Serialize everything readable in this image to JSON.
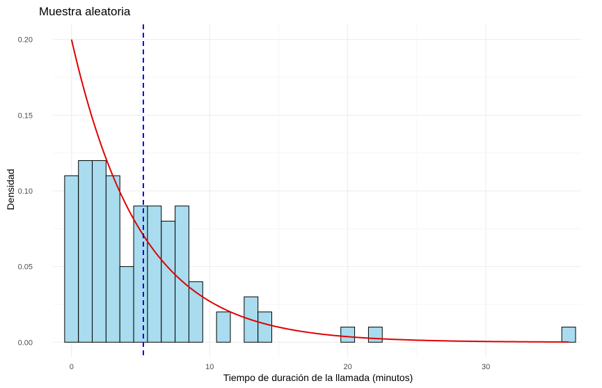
{
  "chart_data": {
    "type": "bar",
    "title": "Muestra aleatoria",
    "xlabel": "Tiempo de duración de la llamada (minutos)",
    "ylabel": "Densidad",
    "xlim": [
      -1.35,
      36.9
    ],
    "ylim": [
      -0.01,
      0.21
    ],
    "x_ticks": [
      0,
      10,
      20,
      30
    ],
    "x_tick_labels": [
      "0",
      "10",
      "20",
      "30"
    ],
    "y_ticks": [
      0,
      0.05,
      0.1,
      0.15,
      0.2
    ],
    "y_tick_labels": [
      "0.00",
      "0.05",
      "0.10",
      "0.15",
      "0.20"
    ],
    "grid": true,
    "histogram": {
      "bin_width": 1,
      "bins": [
        {
          "start": -0.5,
          "value": 0.11
        },
        {
          "start": 0.5,
          "value": 0.12
        },
        {
          "start": 1.5,
          "value": 0.12
        },
        {
          "start": 2.5,
          "value": 0.11
        },
        {
          "start": 3.5,
          "value": 0.05
        },
        {
          "start": 4.5,
          "value": 0.09
        },
        {
          "start": 5.5,
          "value": 0.09
        },
        {
          "start": 6.5,
          "value": 0.08
        },
        {
          "start": 7.5,
          "value": 0.09
        },
        {
          "start": 8.5,
          "value": 0.04
        },
        {
          "start": 10.5,
          "value": 0.02
        },
        {
          "start": 12.5,
          "value": 0.03
        },
        {
          "start": 13.5,
          "value": 0.02
        },
        {
          "start": 19.5,
          "value": 0.01
        },
        {
          "start": 21.5,
          "value": 0.01
        },
        {
          "start": 35.5,
          "value": 0.01
        }
      ]
    },
    "density_curve": {
      "rate": 0.2,
      "x_range": [
        0,
        36
      ],
      "color": "#e00000"
    },
    "mean_line": {
      "x": 5.2,
      "style": "dashed",
      "color": "#0000ee"
    },
    "colors": {
      "bar_fill": "#a8dcee",
      "bar_stroke": "#000000",
      "grid": "#ebebeb"
    }
  }
}
